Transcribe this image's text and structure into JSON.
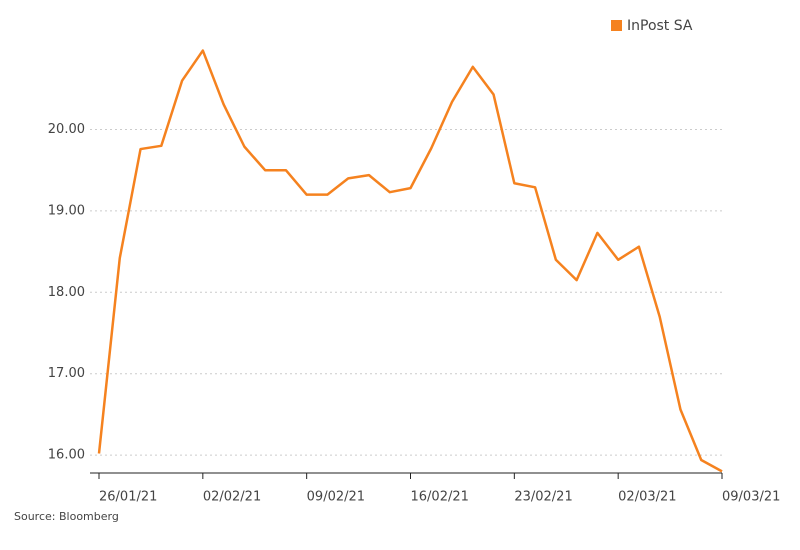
{
  "chart_data": {
    "type": "line",
    "categories": [
      "26/01/21",
      null,
      null,
      null,
      null,
      "02/02/21",
      null,
      null,
      null,
      null,
      "09/02/21",
      null,
      null,
      null,
      null,
      "16/02/21",
      null,
      null,
      null,
      null,
      "23/02/21",
      null,
      null,
      null,
      null,
      "02/03/21",
      null,
      null,
      null,
      null,
      "09/03/21"
    ],
    "series": [
      {
        "name": "InPost SA",
        "color": "#f5821f",
        "values": [
          16.02,
          18.42,
          19.76,
          19.8,
          20.6,
          20.97,
          20.31,
          19.79,
          19.5,
          19.5,
          19.2,
          19.2,
          19.4,
          19.44,
          19.23,
          19.28,
          19.77,
          20.34,
          20.77,
          20.43,
          19.34,
          19.29,
          18.4,
          18.15,
          18.73,
          18.4,
          18.56,
          17.7,
          16.56,
          15.94,
          15.8
        ]
      }
    ],
    "ylim": [
      15.78,
      21.1
    ],
    "yticks": [
      {
        "value": 16,
        "label": "16.00"
      },
      {
        "value": 17,
        "label": "17.00"
      },
      {
        "value": 18,
        "label": "18.00"
      },
      {
        "value": 19,
        "label": "19.00"
      },
      {
        "value": 20,
        "label": "20.00"
      }
    ],
    "grid": true,
    "legend": "top-right",
    "source": "Source: Bloomberg"
  }
}
